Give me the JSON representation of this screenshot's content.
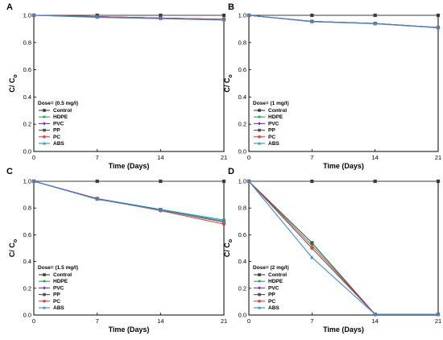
{
  "chart_data": [
    {
      "panel": "A",
      "type": "line",
      "xlabel": "Time (Days)",
      "ylabel_main": "C/ C",
      "ylabel_sub": "o",
      "x": [
        0,
        7,
        14,
        21
      ],
      "xticks": [
        "0",
        "7",
        "14",
        "21"
      ],
      "ylim": [
        0.0,
        1.0
      ],
      "yticks": [
        "0.0",
        "0.2",
        "0.4",
        "0.6",
        "0.8",
        "1.0"
      ],
      "legend_title": "Dose= (0.5 mg/l)",
      "series": [
        {
          "name": "Control",
          "color": "#3c3c3c",
          "marker": "square",
          "values": [
            1.0,
            1.0,
            1.0,
            1.0
          ]
        },
        {
          "name": "HDPE",
          "color": "#2aa05a",
          "marker": "triangle-down",
          "values": [
            1.0,
            0.99,
            0.98,
            0.97
          ]
        },
        {
          "name": "PVC",
          "color": "#7a2fc8",
          "marker": "diamond",
          "values": [
            1.0,
            0.99,
            0.98,
            0.97
          ]
        },
        {
          "name": "PP",
          "color": "#505050",
          "marker": "square",
          "values": [
            1.0,
            0.99,
            0.98,
            0.97
          ]
        },
        {
          "name": "PC",
          "color": "#e04040",
          "marker": "circle",
          "values": [
            1.0,
            0.99,
            0.98,
            0.97
          ]
        },
        {
          "name": "ABS",
          "color": "#2f8fd8",
          "marker": "triangle-up",
          "values": [
            1.0,
            0.985,
            0.975,
            0.965
          ]
        }
      ]
    },
    {
      "panel": "B",
      "type": "line",
      "xlabel": "Time (Days)",
      "ylabel_main": "C/ C",
      "ylabel_sub": "o",
      "x": [
        0,
        7,
        14,
        21
      ],
      "xticks": [
        "0",
        "7",
        "14",
        "21"
      ],
      "ylim": [
        0.0,
        1.0
      ],
      "yticks": [
        "0.0",
        "0.2",
        "0.4",
        "0.6",
        "0.8",
        "1.0"
      ],
      "legend_title": "Dose= (1 mg/l)",
      "series": [
        {
          "name": "Control",
          "color": "#3c3c3c",
          "marker": "square",
          "values": [
            1.0,
            1.0,
            1.0,
            1.0
          ]
        },
        {
          "name": "HDPE",
          "color": "#2aa05a",
          "marker": "triangle-down",
          "values": [
            1.0,
            0.955,
            0.94,
            0.91
          ]
        },
        {
          "name": "PVC",
          "color": "#7a2fc8",
          "marker": "diamond",
          "values": [
            1.0,
            0.955,
            0.94,
            0.91
          ]
        },
        {
          "name": "PP",
          "color": "#505050",
          "marker": "square",
          "values": [
            1.0,
            0.955,
            0.94,
            0.91
          ]
        },
        {
          "name": "PC",
          "color": "#e04040",
          "marker": "circle",
          "values": [
            1.0,
            0.955,
            0.94,
            0.91
          ]
        },
        {
          "name": "ABS",
          "color": "#2f8fd8",
          "marker": "triangle-up",
          "values": [
            1.0,
            0.953,
            0.938,
            0.908
          ]
        }
      ]
    },
    {
      "panel": "C",
      "type": "line",
      "xlabel": "Time (Days)",
      "ylabel_main": "C/ C",
      "ylabel_sub": "o",
      "x": [
        0,
        7,
        14,
        21
      ],
      "xticks": [
        "0",
        "7",
        "14",
        "21"
      ],
      "ylim": [
        0.0,
        1.0
      ],
      "yticks": [
        "0.0",
        "0.2",
        "0.4",
        "0.6",
        "0.8",
        "1.0"
      ],
      "legend_title": "Dose= (1.5 mg/l)",
      "series": [
        {
          "name": "Control",
          "color": "#3c3c3c",
          "marker": "square",
          "values": [
            1.0,
            1.0,
            1.0,
            1.0
          ]
        },
        {
          "name": "HDPE",
          "color": "#2aa05a",
          "marker": "triangle-down",
          "values": [
            1.0,
            0.87,
            0.79,
            0.71
          ]
        },
        {
          "name": "PVC",
          "color": "#7a2fc8",
          "marker": "diamond",
          "values": [
            1.0,
            0.87,
            0.785,
            0.7
          ]
        },
        {
          "name": "PP",
          "color": "#505050",
          "marker": "square",
          "values": [
            1.0,
            0.87,
            0.785,
            0.695
          ]
        },
        {
          "name": "PC",
          "color": "#e04040",
          "marker": "circle",
          "values": [
            1.0,
            0.87,
            0.78,
            0.68
          ]
        },
        {
          "name": "ABS",
          "color": "#2f8fd8",
          "marker": "triangle-up",
          "values": [
            1.0,
            0.865,
            0.785,
            0.7
          ]
        }
      ]
    },
    {
      "panel": "D",
      "type": "line",
      "xlabel": "Time (Days)",
      "ylabel_main": "C/ C",
      "ylabel_sub": "o",
      "x": [
        0,
        7,
        14,
        21
      ],
      "xticks": [
        "0",
        "7",
        "14",
        "21"
      ],
      "ylim": [
        0.0,
        1.0
      ],
      "yticks": [
        "0.0",
        "0.2",
        "0.4",
        "0.6",
        "0.8",
        "1.0"
      ],
      "legend_title": "Dose= (2 mg/l)",
      "series": [
        {
          "name": "Control",
          "color": "#3c3c3c",
          "marker": "square",
          "values": [
            1.0,
            1.0,
            1.0,
            1.0
          ]
        },
        {
          "name": "HDPE",
          "color": "#2aa05a",
          "marker": "triangle-down",
          "values": [
            1.0,
            0.52,
            0.005,
            0.005
          ]
        },
        {
          "name": "PVC",
          "color": "#7a2fc8",
          "marker": "diamond",
          "values": [
            1.0,
            0.5,
            0.005,
            0.005
          ]
        },
        {
          "name": "PP",
          "color": "#505050",
          "marker": "square",
          "values": [
            1.0,
            0.54,
            0.005,
            0.005
          ]
        },
        {
          "name": "PC",
          "color": "#e04040",
          "marker": "circle",
          "values": [
            1.0,
            0.5,
            0.005,
            0.005
          ]
        },
        {
          "name": "ABS",
          "color": "#2f8fd8",
          "marker": "triangle-up",
          "values": [
            1.0,
            0.43,
            0.005,
            0.005
          ]
        }
      ]
    }
  ]
}
